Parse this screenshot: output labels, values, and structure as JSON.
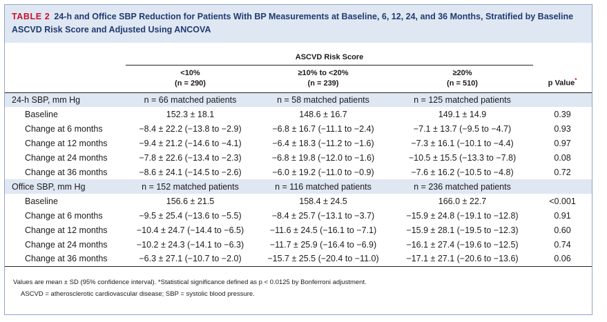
{
  "table": {
    "number_label": "TABLE 2",
    "title": "24-h and Office SBP Reduction for Patients With BP Measurements at Baseline, 6, 12, 24, and 36 Months, Stratified by Baseline ASCVD Risk Score and Adjusted Using ANCOVA",
    "group_header": "ASCVD Risk Score",
    "columns": [
      {
        "label": "<10%",
        "n": "(n = 290)"
      },
      {
        "label": "≥10% to <20%",
        "n": "(n = 239)"
      },
      {
        "label": "≥20%",
        "n": "(n = 510)"
      }
    ],
    "pvalue_header": "p Value",
    "pvalue_marker": "*",
    "sections": [
      {
        "label": "24-h SBP, mm Hg",
        "counts": [
          "n = 66 matched patients",
          "n = 58 matched patients",
          "n = 125 matched patients"
        ],
        "rows": [
          {
            "label": "Baseline",
            "values": [
              "152.3 ± 18.1",
              "148.6 ± 16.7",
              "149.1 ± 14.9"
            ],
            "p": "0.39"
          },
          {
            "label": "Change at 6 months",
            "values": [
              "−8.4 ± 22.2 (−13.8 to −2.9)",
              "−6.8 ± 16.7 (−11.1 to −2.4)",
              "−7.1 ± 13.7 (−9.5 to −4.7)"
            ],
            "p": "0.93"
          },
          {
            "label": "Change at 12 months",
            "values": [
              "−9.4 ± 21.2 (−14.6 to −4.1)",
              "−6.4 ± 18.3 (−11.2 to −1.6)",
              "−7.3 ± 16.1 (−10.1 to −4.4)"
            ],
            "p": "0.97"
          },
          {
            "label": "Change at 24 months",
            "values": [
              "−7.8 ± 22.6 (−13.4 to −2.3)",
              "−6.8 ± 19.8 (−12.0 to −1.6)",
              "−10.5 ± 15.5 (−13.3 to −7.8)"
            ],
            "p": "0.08"
          },
          {
            "label": "Change at 36 months",
            "values": [
              "−8.6 ± 24.1 (−14.5 to −2.6)",
              "−6.0 ± 19.2 (−11.0 to −0.9)",
              "−7.6 ± 16.2 (−10.5 to −4.8)"
            ],
            "p": "0.72"
          }
        ]
      },
      {
        "label": "Office SBP, mm Hg",
        "counts": [
          "n = 152 matched patients",
          "n = 116 matched patients",
          "n = 236 matched patients"
        ],
        "rows": [
          {
            "label": "Baseline",
            "values": [
              "156.6 ± 21.5",
              "158.4 ± 24.5",
              "166.0 ± 22.7"
            ],
            "p": "<0.001"
          },
          {
            "label": "Change at 6 months",
            "values": [
              "−9.5 ± 25.4 (−13.6 to −5.5)",
              "−8.4 ± 25.7 (−13.1 to −3.7)",
              "−15.9 ± 24.8 (−19.1 to −12.8)"
            ],
            "p": "0.91"
          },
          {
            "label": "Change at 12 months",
            "values": [
              "−10.4 ± 24.7 (−14.4 to −6.5)",
              "−11.6 ± 24.5 (−16.1 to −7.1)",
              "−15.9 ± 28.1 (−19.5 to −12.3)"
            ],
            "p": "0.60"
          },
          {
            "label": "Change at 24 months",
            "values": [
              "−10.2 ± 24.3 (−14.1 to −6.3)",
              "−11.7 ± 25.9 (−16.4 to −6.9)",
              "−16.1 ± 27.4 (−19.6 to −12.5)"
            ],
            "p": "0.74"
          },
          {
            "label": "Change at 36 months",
            "values": [
              "−6.3 ± 27.1 (−10.7 to −2.0)",
              "−15.7 ± 25.5 (−20.4 to −11.0)",
              "−17.1 ± 27.1 (−20.6 to −13.6)"
            ],
            "p": "0.06"
          }
        ]
      }
    ],
    "footnote_1": "Values are mean ± SD (95% confidence interval). *Statistical significance defined as p < 0.0125 by Bonferroni adjustment.",
    "footnote_2": "ASCVD = atherosclerotic cardiovascular disease; SBP = systolic blood pressure."
  },
  "colors": {
    "accent": "#c8102e",
    "title_text": "#1f3a70",
    "band": "#dfe7f3",
    "border": "#8fa3c7"
  }
}
